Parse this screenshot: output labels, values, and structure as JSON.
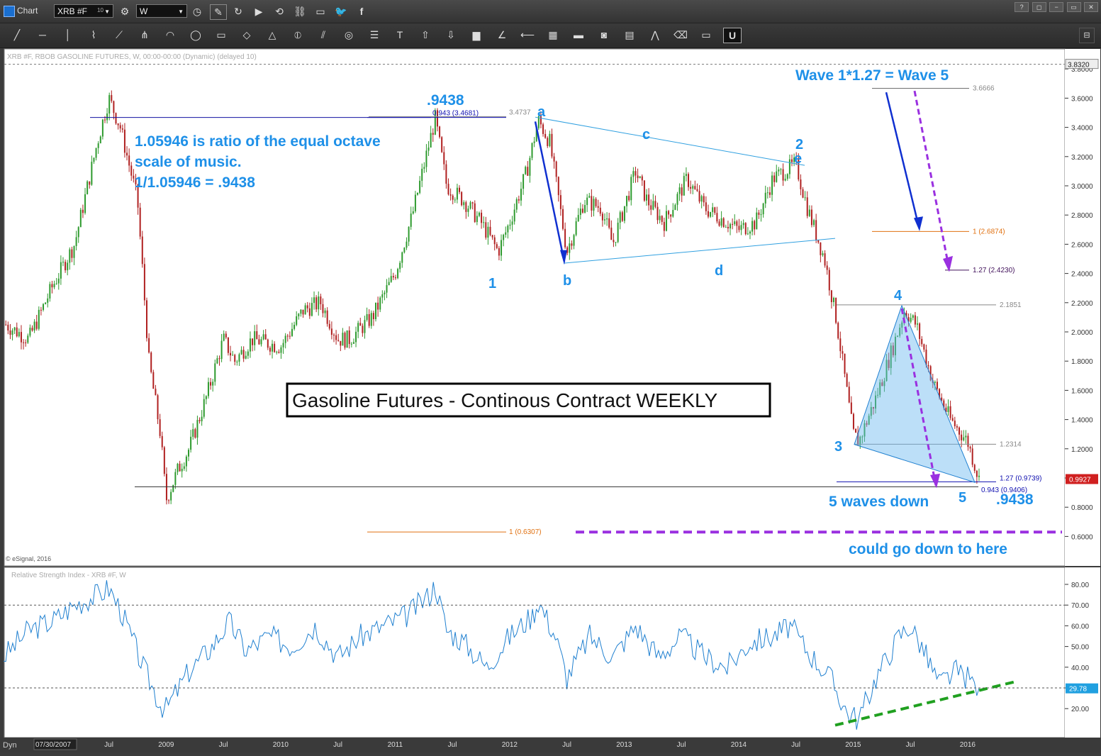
{
  "window": {
    "title": "Chart",
    "symbol": "XRB #F",
    "symbol_superscript": "10",
    "interval": "W",
    "controls": [
      "?",
      "◻",
      "−",
      "▭",
      "✕"
    ]
  },
  "toolbar": {
    "tools": [
      "line-tool",
      "horizontal-line-tool",
      "vertical-line-tool",
      "elliott-wave-tool",
      "fan-tool",
      "pitchfork-tool",
      "arc-tool",
      "ellipse-tool",
      "rectangle-tool",
      "eraser-tool",
      "triangle-tool",
      "cycle-tool",
      "parallel-lines-tool",
      "circle-tool",
      "lines-tool",
      "text-tool",
      "arrow-up-tool",
      "arrow-down-tool",
      "color-tool",
      "angle-tool",
      "gann-tool",
      "grid-tool",
      "mob-tool",
      "price-tool",
      "pti-tool",
      "zigzag-tool",
      "eraser-all-tool",
      "list-tool",
      "magnet-tool"
    ],
    "right_tool": "settings"
  },
  "chart_data": {
    "type": "candlestick",
    "header": "XRB #F, RBOB GASOLINE FUTURES, W, 00:00-00:00 (Dynamic) (delayed 10)",
    "copyright": "© eSignal, 2016",
    "title_box": "Gasoline Futures - Continous Contract WEEKLY",
    "ylim": [
      0.5,
      3.9
    ],
    "yticks": [
      "3.8000",
      "3.6000",
      "3.4000",
      "3.2000",
      "3.0000",
      "2.8000",
      "2.6000",
      "2.4000",
      "2.2000",
      "2.0000",
      "1.8000",
      "1.6000",
      "1.4000",
      "1.2000",
      "1.0000",
      "0.8000",
      "0.6000"
    ],
    "ytick_values": [
      3.8,
      3.6,
      3.4,
      3.2,
      3.0,
      2.8,
      2.6,
      2.4,
      2.2,
      2.0,
      1.8,
      1.6,
      1.4,
      1.2,
      1.0,
      0.8,
      0.6
    ],
    "top_price_label": "3.8320",
    "last_price_label": "0.9927",
    "xticks": [
      "07/30/2007",
      "Jul",
      "2009",
      "Jul",
      "2010",
      "Jul",
      "2011",
      "Jul",
      "2012",
      "Jul",
      "2013",
      "Jul",
      "2014",
      "Jul",
      "2015",
      "Jul",
      "2016"
    ],
    "xtick_years": [
      2007.58,
      2008.5,
      2009.0,
      2009.5,
      2010.0,
      2010.5,
      2011.0,
      2011.5,
      2012.0,
      2012.5,
      2013.0,
      2013.5,
      2014.0,
      2014.5,
      2015.0,
      2015.5,
      2016.0
    ],
    "price_path": [
      [
        2007.6,
        2.05
      ],
      [
        2007.8,
        1.95
      ],
      [
        2008.0,
        2.3
      ],
      [
        2008.2,
        2.6
      ],
      [
        2008.4,
        3.3
      ],
      [
        2008.5,
        3.6
      ],
      [
        2008.6,
        3.4
      ],
      [
        2008.75,
        2.9
      ],
      [
        2008.85,
        1.8
      ],
      [
        2008.95,
        1.3
      ],
      [
        2009.0,
        0.85
      ],
      [
        2009.1,
        1.05
      ],
      [
        2009.2,
        1.2
      ],
      [
        2009.35,
        1.55
      ],
      [
        2009.5,
        1.95
      ],
      [
        2009.6,
        1.8
      ],
      [
        2009.75,
        1.95
      ],
      [
        2010.0,
        1.9
      ],
      [
        2010.2,
        2.15
      ],
      [
        2010.35,
        2.2
      ],
      [
        2010.5,
        1.95
      ],
      [
        2010.6,
        1.95
      ],
      [
        2010.8,
        2.1
      ],
      [
        2011.0,
        2.4
      ],
      [
        2011.15,
        2.8
      ],
      [
        2011.3,
        3.3
      ],
      [
        2011.35,
        3.46
      ],
      [
        2011.45,
        3.0
      ],
      [
        2011.6,
        2.9
      ],
      [
        2011.75,
        2.75
      ],
      [
        2011.9,
        2.55
      ],
      [
        2012.0,
        2.75
      ],
      [
        2012.15,
        3.1
      ],
      [
        2012.25,
        3.45
      ],
      [
        2012.35,
        3.3
      ],
      [
        2012.5,
        2.55
      ],
      [
        2012.65,
        2.9
      ],
      [
        2012.8,
        2.85
      ],
      [
        2012.9,
        2.6
      ],
      [
        2013.1,
        3.1
      ],
      [
        2013.2,
        2.9
      ],
      [
        2013.35,
        2.75
      ],
      [
        2013.55,
        3.05
      ],
      [
        2013.7,
        2.85
      ],
      [
        2014.0,
        2.7
      ],
      [
        2014.15,
        2.75
      ],
      [
        2014.3,
        3.05
      ],
      [
        2014.5,
        3.15
      ],
      [
        2014.6,
        2.85
      ],
      [
        2014.75,
        2.5
      ],
      [
        2014.85,
        2.1
      ],
      [
        2015.0,
        1.3
      ],
      [
        2015.05,
        1.25
      ],
      [
        2015.2,
        1.55
      ],
      [
        2015.35,
        1.9
      ],
      [
        2015.45,
        2.15
      ],
      [
        2015.55,
        2.05
      ],
      [
        2015.7,
        1.65
      ],
      [
        2015.85,
        1.4
      ],
      [
        2016.0,
        1.25
      ],
      [
        2016.1,
        0.99
      ]
    ],
    "rsi": {
      "header": "Relative Strength Index - XRB #F, W",
      "ylim": [
        0,
        90
      ],
      "yticks": [
        "80.00",
        "70.00",
        "60.00",
        "50.00",
        "40.00",
        "30.00",
        "20.00"
      ],
      "ytick_values": [
        80,
        70,
        60,
        50,
        40,
        30,
        20
      ],
      "levels": [
        70,
        30
      ],
      "last_value_label": "29.78",
      "path": [
        [
          2007.58,
          45
        ],
        [
          2007.8,
          58
        ],
        [
          2008.0,
          62
        ],
        [
          2008.2,
          70
        ],
        [
          2008.4,
          75
        ],
        [
          2008.5,
          78
        ],
        [
          2008.6,
          68
        ],
        [
          2008.8,
          40
        ],
        [
          2008.95,
          22
        ],
        [
          2009.0,
          20
        ],
        [
          2009.2,
          38
        ],
        [
          2009.4,
          50
        ],
        [
          2009.55,
          62
        ],
        [
          2009.7,
          48
        ],
        [
          2009.9,
          55
        ],
        [
          2010.1,
          50
        ],
        [
          2010.3,
          60
        ],
        [
          2010.5,
          45
        ],
        [
          2010.7,
          55
        ],
        [
          2010.9,
          60
        ],
        [
          2011.1,
          65
        ],
        [
          2011.3,
          75
        ],
        [
          2011.35,
          80
        ],
        [
          2011.45,
          58
        ],
        [
          2011.6,
          52
        ],
        [
          2011.8,
          40
        ],
        [
          2012.0,
          55
        ],
        [
          2012.2,
          65
        ],
        [
          2012.25,
          72
        ],
        [
          2012.4,
          55
        ],
        [
          2012.5,
          35
        ],
        [
          2012.7,
          55
        ],
        [
          2012.9,
          45
        ],
        [
          2013.1,
          60
        ],
        [
          2013.3,
          45
        ],
        [
          2013.5,
          55
        ],
        [
          2013.7,
          45
        ],
        [
          2013.9,
          40
        ],
        [
          2014.1,
          52
        ],
        [
          2014.3,
          55
        ],
        [
          2014.45,
          60
        ],
        [
          2014.6,
          48
        ],
        [
          2014.8,
          35
        ],
        [
          2014.95,
          18
        ],
        [
          2015.05,
          15
        ],
        [
          2015.2,
          35
        ],
        [
          2015.4,
          55
        ],
        [
          2015.5,
          60
        ],
        [
          2015.6,
          50
        ],
        [
          2015.75,
          32
        ],
        [
          2015.9,
          38
        ],
        [
          2016.0,
          35
        ],
        [
          2016.1,
          29.78
        ]
      ]
    },
    "fib_labels": [
      {
        "text": "0.943 (3.4681)",
        "price": 3.4681,
        "color": "#1010b0"
      },
      {
        "text": "3.4737",
        "price": 3.4737,
        "color": "#888888"
      },
      {
        "text": "3.6666",
        "price": 3.6666,
        "color": "#888888"
      },
      {
        "text": "1 (2.6874)",
        "price": 2.6874,
        "color": "#e07010"
      },
      {
        "text": "1.27 (2.4230)",
        "price": 2.423,
        "color": "#40105a"
      },
      {
        "text": "2.1851",
        "price": 2.1851,
        "color": "#888888"
      },
      {
        "text": "1.2314",
        "price": 1.2314,
        "color": "#888888"
      },
      {
        "text": "1.27 (0.9739)",
        "price": 0.9739,
        "color": "#1010b0"
      },
      {
        "text": "0.943 (0.9406)",
        "price": 0.9406,
        "color": "#1010b0"
      },
      {
        "text": "1 (0.6307)",
        "price": 0.6307,
        "color": "#e07010"
      }
    ],
    "annotations": {
      "octave_text": [
        "1.05946 is ratio of the equal octave",
        "scale of music.",
        "1/1.05946 = .9438"
      ],
      "ratio_top": ".9438",
      "ratio_bottom": ".9438",
      "wave_target": "Wave 1*1.27 = Wave 5",
      "five_waves": "5 waves down",
      "could_go": "could go down to here",
      "wave_labels": [
        "a",
        "b",
        "c",
        "d",
        "2",
        "e",
        "1",
        "3",
        "4",
        "5"
      ]
    },
    "colors": {
      "up_candle": "#2e9a2e",
      "down_candle": "#b02020",
      "annotation_blue": "#1e90e8",
      "arrow_purple": "#9a30e0",
      "arrow_blue": "#1030d0",
      "trend_green": "#20a020",
      "rsi_line": "#2080d0"
    }
  }
}
